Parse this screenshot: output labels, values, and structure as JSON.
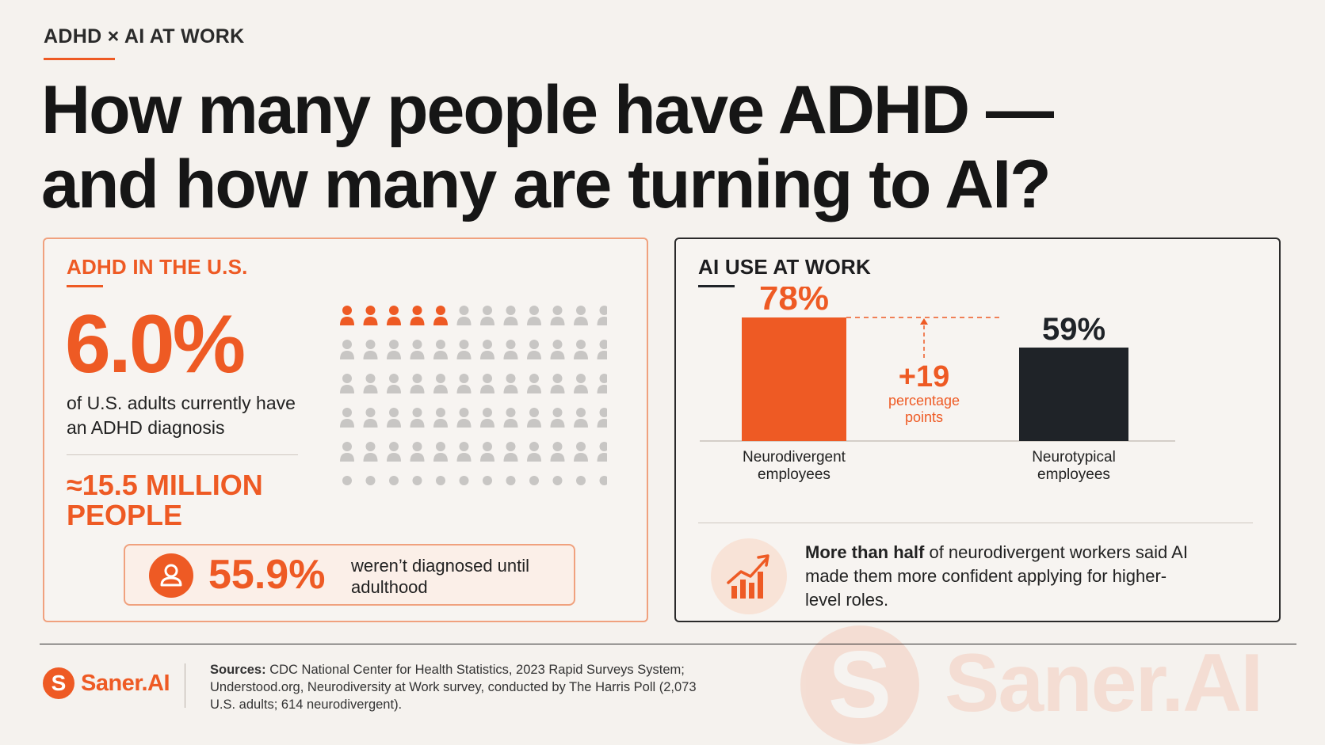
{
  "header": {
    "kicker": "ADHD × AI AT WORK",
    "title_line1": "How many people have ADHD —",
    "title_line2": "and how many are turning to AI?"
  },
  "left_panel": {
    "section_label": "ADHD IN THE U.S.",
    "big_stat": "6.0%",
    "stat_desc": "of U.S. adults currently have an ADHD diagnosis",
    "million": "≈15.5 MILLION PEOPLE",
    "callout_pct": "55.9%",
    "callout_text": "weren’t diagnosed until adulthood",
    "icon_grid": {
      "rows": 6,
      "cols": 12,
      "highlighted": 5,
      "highlight_color": "#ee5a24",
      "base_color": "#c8c6c4"
    }
  },
  "right_panel": {
    "section_label": "AI USE AT WORK",
    "insight_bold": "More than half",
    "insight_rest": " of neurodivergent workers said AI made them more confident applying for higher-level roles."
  },
  "chart_data": {
    "type": "bar",
    "title": "AI USE AT WORK",
    "categories": [
      "Neurodivergent employees",
      "Neurotypical employees"
    ],
    "values": [
      78,
      59
    ],
    "value_labels": [
      "78%",
      "59%"
    ],
    "colors": [
      "#ee5a24",
      "#1f2328"
    ],
    "ylim": [
      0,
      100
    ],
    "annotation": {
      "value": "+19",
      "text": "percentage points"
    }
  },
  "footer": {
    "logo_text": "Saner.AI",
    "sources_label": "Sources:",
    "sources_text": " CDC National Center for Health Statistics, 2023 Rapid Surveys System; Understood.org, Neurodiversity at Work survey, conducted by The Harris Poll (2,073 U.S. adults; 614 neurodivergent).",
    "watermark_text": "Saner.AI"
  },
  "colors": {
    "accent": "#ee5a24",
    "dark": "#1f2328",
    "background": "#f5f2ee"
  }
}
